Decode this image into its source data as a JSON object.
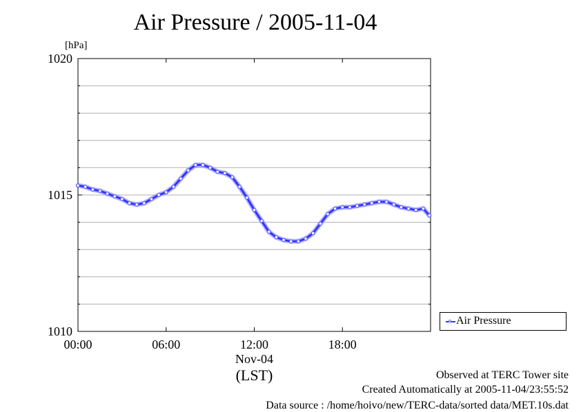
{
  "chart_data": {
    "type": "line",
    "title": "Air Pressure / 2005-11-04",
    "ylabel": "[hPa]",
    "xlabel": "(LST)",
    "date_label": "Nov-04",
    "ylim": [
      1010,
      1020
    ],
    "yticks": [
      1010,
      1011,
      1012,
      1013,
      1014,
      1015,
      1016,
      1017,
      1018,
      1019,
      1020
    ],
    "ytick_labels": [
      "1010",
      "",
      "",
      "",
      "",
      "1015",
      "",
      "",
      "",
      "",
      "1020"
    ],
    "xlim": [
      "00:00",
      "24:00"
    ],
    "xticks": [
      "00:00",
      "06:00",
      "12:00",
      "18:00"
    ],
    "grid": "horizontal",
    "legend_position": "right",
    "series": [
      {
        "name": "Air Pressure",
        "color": "#3333ff",
        "x": [
          "00:00",
          "00:30",
          "01:00",
          "01:30",
          "02:00",
          "02:30",
          "03:00",
          "03:30",
          "04:00",
          "04:30",
          "05:00",
          "05:30",
          "06:00",
          "06:30",
          "07:00",
          "07:30",
          "08:00",
          "08:30",
          "09:00",
          "09:30",
          "10:00",
          "10:30",
          "11:00",
          "11:30",
          "12:00",
          "12:30",
          "13:00",
          "13:30",
          "14:00",
          "14:30",
          "15:00",
          "15:30",
          "16:00",
          "16:30",
          "17:00",
          "17:30",
          "18:00",
          "18:30",
          "19:00",
          "19:30",
          "20:00",
          "20:30",
          "21:00",
          "21:30",
          "22:00",
          "22:30",
          "23:00",
          "23:30",
          "23:55"
        ],
        "y": [
          1015.35,
          1015.3,
          1015.2,
          1015.15,
          1015.05,
          1014.95,
          1014.85,
          1014.7,
          1014.65,
          1014.7,
          1014.85,
          1015.0,
          1015.1,
          1015.3,
          1015.6,
          1015.9,
          1016.1,
          1016.1,
          1016.0,
          1015.85,
          1015.8,
          1015.65,
          1015.3,
          1014.9,
          1014.45,
          1014.05,
          1013.65,
          1013.45,
          1013.35,
          1013.3,
          1013.3,
          1013.4,
          1013.6,
          1013.95,
          1014.3,
          1014.5,
          1014.55,
          1014.55,
          1014.6,
          1014.65,
          1014.7,
          1014.75,
          1014.75,
          1014.65,
          1014.55,
          1014.5,
          1014.45,
          1014.5,
          1014.25
        ]
      }
    ]
  },
  "footer": {
    "observed": "Observed at TERC Tower site",
    "created": "Created Automatically at 2005-11-04/23:55:52",
    "source": "Data source : /home/hoivo/new/TERC-data/sorted  data/MET.10s.dat"
  }
}
